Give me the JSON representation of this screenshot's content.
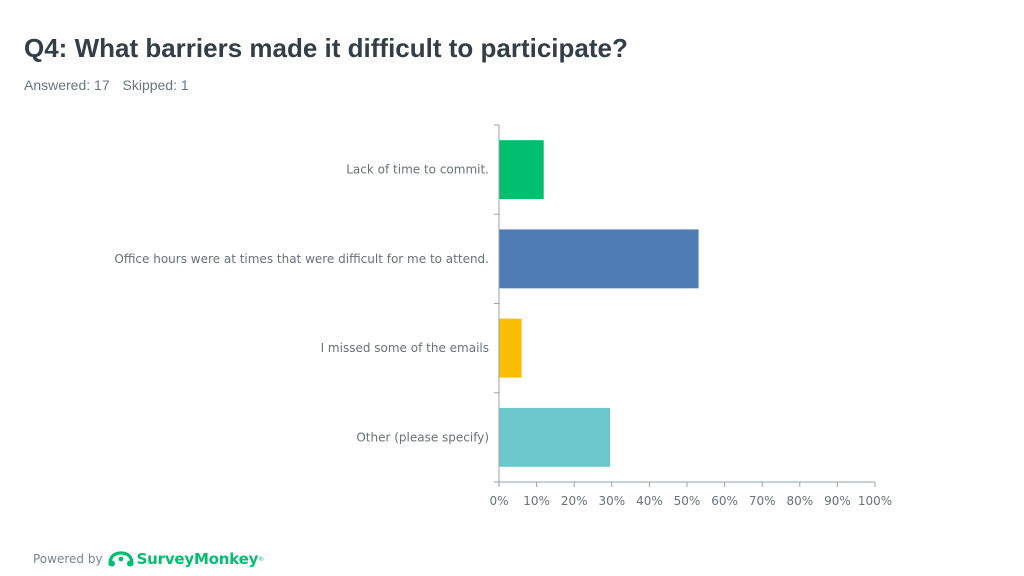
{
  "header": {
    "title": "Q4: What barriers made it difficult to participate?",
    "answered": "Answered: 17",
    "skipped": "Skipped: 1"
  },
  "footer": {
    "powered_by": "Powered by",
    "brand": "SurveyMonkey",
    "trademark": "®",
    "brand_color": "#00bf6f",
    "icon": "surveymonkey-logo-icon"
  },
  "chart_data": {
    "type": "bar",
    "orientation": "horizontal",
    "categories": [
      "Lack of time to commit.",
      "Office hours were at times that were difficult for me to attend.",
      "I missed some of the emails",
      "Other (please specify)"
    ],
    "values": [
      11.76,
      52.94,
      5.88,
      29.41
    ],
    "colors": [
      "#00bf6f",
      "#507cb6",
      "#f9be00",
      "#6bc8cd"
    ],
    "xlim": [
      0,
      100
    ],
    "xticks": [
      "0%",
      "10%",
      "20%",
      "30%",
      "40%",
      "50%",
      "60%",
      "70%",
      "80%",
      "90%",
      "100%"
    ],
    "grid": false,
    "legend": "none"
  }
}
